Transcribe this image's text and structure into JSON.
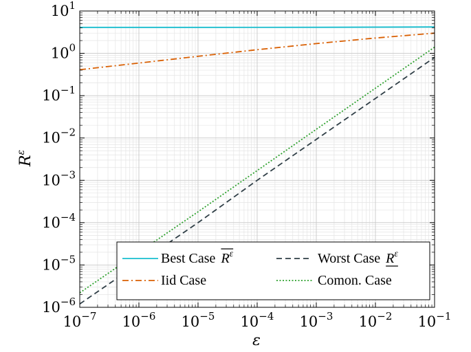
{
  "chart_data": {
    "type": "line",
    "title": "",
    "xlabel": "ε",
    "ylabel": {
      "base": "R",
      "sup": "ε"
    },
    "x_scale": "log",
    "y_scale": "log",
    "xlim": [
      1e-07,
      0.1
    ],
    "ylim": [
      1e-06,
      10
    ],
    "grid": true,
    "x_ticks": [
      {
        "base": "10",
        "exp": "−7",
        "value": 1e-07
      },
      {
        "base": "10",
        "exp": "−6",
        "value": 1e-06
      },
      {
        "base": "10",
        "exp": "−5",
        "value": 1e-05
      },
      {
        "base": "10",
        "exp": "−4",
        "value": 0.0001
      },
      {
        "base": "10",
        "exp": "−3",
        "value": 0.001
      },
      {
        "base": "10",
        "exp": "−2",
        "value": 0.01
      },
      {
        "base": "10",
        "exp": "−1",
        "value": 0.1
      }
    ],
    "y_ticks": [
      {
        "base": "10",
        "exp": "−6",
        "value": 1e-06
      },
      {
        "base": "10",
        "exp": "−5",
        "value": 1e-05
      },
      {
        "base": "10",
        "exp": "−4",
        "value": 0.0001
      },
      {
        "base": "10",
        "exp": "−3",
        "value": 0.001
      },
      {
        "base": "10",
        "exp": "−2",
        "value": 0.01
      },
      {
        "base": "10",
        "exp": "−1",
        "value": 0.1
      },
      {
        "base": "10",
        "exp": "0",
        "value": 1
      },
      {
        "base": "10",
        "exp": "1",
        "value": 10
      }
    ],
    "legend_position": "bottom-right",
    "series": [
      {
        "name": "Best Case",
        "name_math": "R",
        "name_sup": "ε",
        "mark": "overline",
        "color": "#17becf",
        "dash": "solid",
        "x": [
          1e-07,
          1e-05,
          0.001,
          0.1
        ],
        "y": [
          4.1,
          4.1,
          4.12,
          4.2
        ]
      },
      {
        "name": "Worst Case",
        "name_math": "R",
        "name_sup": "ε",
        "mark": "underline",
        "color": "#2f3e46",
        "dash": "dashed",
        "x": [
          1e-07,
          1e-06,
          1e-05,
          0.0001,
          0.001,
          0.01,
          0.1
        ],
        "y": [
          1.2e-06,
          1.1e-05,
          0.0001,
          0.001,
          0.0093,
          0.086,
          0.8
        ]
      },
      {
        "name": "Iid Case",
        "color": "#d95f02",
        "dash": "dashdot",
        "x": [
          1e-07,
          1e-06,
          1e-05,
          0.0001,
          0.001,
          0.01,
          0.1
        ],
        "y": [
          0.41,
          0.59,
          0.85,
          1.22,
          1.7,
          2.3,
          3.0
        ]
      },
      {
        "name": "Comon. Case",
        "color": "#2ca02c",
        "dash": "dotted",
        "x": [
          1e-07,
          1e-06,
          1e-05,
          0.0001,
          0.001,
          0.01,
          0.1
        ],
        "y": [
          2.2e-06,
          2e-05,
          0.00018,
          0.0017,
          0.016,
          0.15,
          1.4
        ]
      }
    ]
  }
}
